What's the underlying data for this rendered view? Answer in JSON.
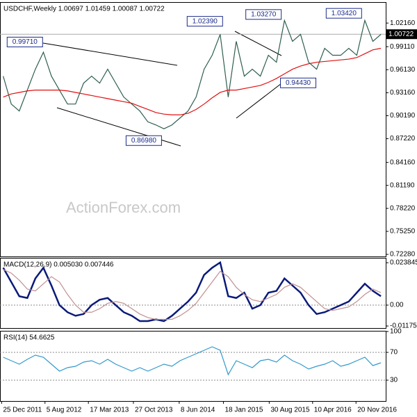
{
  "chart_data": [
    {
      "type": "line",
      "title": "USDCHF,Weekly 1.00697 1.01459 1.00087 1.00722",
      "watermark": "ActionForex.com",
      "x": [
        0,
        1,
        2,
        3,
        4,
        5,
        6,
        7,
        8,
        9,
        10,
        11,
        12,
        13,
        14,
        15,
        16,
        17,
        18,
        19,
        20,
        21,
        22,
        23,
        24,
        25,
        26,
        27,
        28,
        29,
        30,
        31,
        32,
        33,
        34,
        35,
        36,
        37,
        38,
        39,
        40,
        41,
        42,
        43,
        44,
        45,
        46,
        47
      ],
      "xlim": [
        -0.4,
        47.6
      ],
      "ylim": [
        0.7201,
        1.0478
      ],
      "yticks": [
        {
          "value": 1.0216,
          "label": "1.02160"
        },
        {
          "value": 0.9911,
          "label": "0.99110"
        },
        {
          "value": 0.9613,
          "label": "0.96130"
        },
        {
          "value": 0.9316,
          "label": "0.93160"
        },
        {
          "value": 0.9019,
          "label": "0.90190"
        },
        {
          "value": 0.8722,
          "label": "0.87220"
        },
        {
          "value": 0.8416,
          "label": "0.84160"
        },
        {
          "value": 0.8119,
          "label": "0.81190"
        },
        {
          "value": 0.7822,
          "label": "0.78220"
        },
        {
          "value": 0.7525,
          "label": "0.75250"
        },
        {
          "value": 0.7228,
          "label": "0.72280"
        }
      ],
      "series": [
        {
          "name": "USDCHF",
          "color": "#2e5e4e",
          "values": [
            0.953,
            0.917,
            0.908,
            0.935,
            0.962,
            0.984,
            0.953,
            0.935,
            0.917,
            0.917,
            0.944,
            0.953,
            0.944,
            0.962,
            0.944,
            0.926,
            0.917,
            0.908,
            0.894,
            0.89,
            0.885,
            0.89,
            0.899,
            0.908,
            0.926,
            0.962,
            0.98,
            1.007,
            0.926,
            0.998,
            0.953,
            0.962,
            0.953,
            0.98,
            0.971,
            1.025,
            0.998,
            1.007,
            0.971,
            0.962,
            0.989,
            0.98,
            0.98,
            0.989,
            0.98,
            1.025,
            0.998,
            1.007
          ]
        },
        {
          "name": "MA",
          "color": "#e01010",
          "values": [
            0.926,
            0.93,
            0.932,
            0.934,
            0.935,
            0.935,
            0.935,
            0.935,
            0.934,
            0.932,
            0.93,
            0.928,
            0.926,
            0.924,
            0.922,
            0.92,
            0.918,
            0.914,
            0.91,
            0.906,
            0.904,
            0.903,
            0.903,
            0.905,
            0.91,
            0.917,
            0.925,
            0.932,
            0.935,
            0.935,
            0.937,
            0.939,
            0.941,
            0.945,
            0.95,
            0.956,
            0.962,
            0.966,
            0.969,
            0.971,
            0.972,
            0.973,
            0.974,
            0.975,
            0.977,
            0.982,
            0.987,
            0.989
          ]
        }
      ],
      "last_price": {
        "value": 1.00722,
        "label": "1.00722"
      },
      "annotations": [
        {
          "x": 27.3,
          "value": 1.0239,
          "label": "1.02390"
        },
        {
          "x": 4.9,
          "value": 0.9971,
          "label": "0.99710"
        },
        {
          "x": 19.7,
          "value": 0.8698,
          "label": "0.86980"
        },
        {
          "x": 34.6,
          "value": 1.0327,
          "label": "1.03270"
        },
        {
          "x": 44.6,
          "value": 1.0342,
          "label": "1.03420"
        },
        {
          "x": 34.5,
          "value": 0.9443,
          "label": "0.94430"
        }
      ]
    },
    {
      "type": "line",
      "title": "MACD(12,26,9) 0.005030 0.007446",
      "x": [
        0,
        1,
        2,
        3,
        4,
        5,
        6,
        7,
        8,
        9,
        10,
        11,
        12,
        13,
        14,
        15,
        16,
        17,
        18,
        19,
        20,
        21,
        22,
        23,
        24,
        25,
        26,
        27,
        28,
        29,
        30,
        31,
        32,
        33,
        34,
        35,
        36,
        37,
        38,
        39,
        40,
        41,
        42,
        43,
        44,
        45,
        46,
        47
      ],
      "xlim": [
        -0.4,
        47.6
      ],
      "ylim": [
        -0.0129,
        0.0262
      ],
      "yticks": [
        0.023845,
        {
          "value": 0,
          "label": "0.00"
        },
        -0.01175
      ],
      "zero_line": 0,
      "series": [
        {
          "name": "MACD",
          "color": "#0a1a7a",
          "values": [
            0.021,
            0.013,
            0.005,
            0.004,
            0.015,
            0.021,
            0.011,
            0.0,
            -0.004,
            -0.006,
            -0.005,
            0.0,
            0.003,
            0.004,
            0.0,
            -0.004,
            -0.006,
            -0.009,
            -0.009,
            -0.008,
            -0.009,
            -0.006,
            -0.002,
            0.002,
            0.007,
            0.017,
            0.021,
            0.024,
            0.005,
            0.004,
            0.007,
            -0.002,
            0.0,
            0.007,
            0.008,
            0.015,
            0.011,
            0.007,
            0.0,
            -0.005,
            -0.004,
            -0.002,
            0.0,
            0.002,
            0.007,
            0.012,
            0.008,
            0.005
          ]
        },
        {
          "name": "Signal",
          "color": "#c09090",
          "values": [
            0.02,
            0.018,
            0.014,
            0.009,
            0.008,
            0.012,
            0.016,
            0.013,
            0.006,
            0.0,
            -0.004,
            -0.004,
            -0.002,
            0.001,
            0.002,
            0.001,
            -0.002,
            -0.005,
            -0.007,
            -0.008,
            -0.008,
            -0.008,
            -0.006,
            -0.003,
            0.001,
            0.007,
            0.013,
            0.019,
            0.016,
            0.01,
            0.006,
            0.003,
            0.002,
            0.004,
            0.006,
            0.01,
            0.012,
            0.01,
            0.006,
            0.002,
            -0.002,
            -0.003,
            -0.002,
            -0.001,
            0.002,
            0.006,
            0.009,
            0.007
          ]
        }
      ]
    },
    {
      "type": "line",
      "title": "RSI(14) 54.6625",
      "x": [
        0,
        1,
        2,
        3,
        4,
        5,
        6,
        7,
        8,
        9,
        10,
        11,
        12,
        13,
        14,
        15,
        16,
        17,
        18,
        19,
        20,
        21,
        22,
        23,
        24,
        25,
        26,
        27,
        28,
        29,
        30,
        31,
        32,
        33,
        34,
        35,
        36,
        37,
        38,
        39,
        40,
        41,
        42,
        43,
        44,
        45,
        46,
        47
      ],
      "xlim": [
        -0.4,
        47.6
      ],
      "ylim": [
        0,
        100
      ],
      "yticks": [
        100,
        70,
        30
      ],
      "levels": [
        70,
        30
      ],
      "series": [
        {
          "name": "RSI",
          "color": "#3399cc",
          "values": [
            63,
            58,
            53,
            60,
            66,
            63,
            53,
            43,
            48,
            50,
            56,
            58,
            53,
            60,
            53,
            48,
            43,
            48,
            43,
            48,
            53,
            50,
            58,
            63,
            68,
            73,
            78,
            73,
            38,
            58,
            53,
            48,
            58,
            60,
            56,
            66,
            58,
            53,
            46,
            50,
            53,
            58,
            50,
            53,
            58,
            63,
            51,
            55
          ]
        }
      ],
      "xticks": [
        {
          "value": -0.2,
          "label": "25 Dec 2011"
        },
        {
          "value": 5.2,
          "label": "5 Aug 2012"
        },
        {
          "value": 10.6,
          "label": "17 Mar 2013"
        },
        {
          "value": 16.2,
          "label": "27 Oct 2013"
        },
        {
          "value": 21.9,
          "label": "8 Jun 2014"
        },
        {
          "value": 27.4,
          "label": "18 Jan 2015"
        },
        {
          "value": 33.1,
          "label": "30 Aug 2015"
        },
        {
          "value": 38.5,
          "label": "10 Apr 2016"
        },
        {
          "value": 43.9,
          "label": "20 Nov 2016"
        }
      ]
    }
  ]
}
